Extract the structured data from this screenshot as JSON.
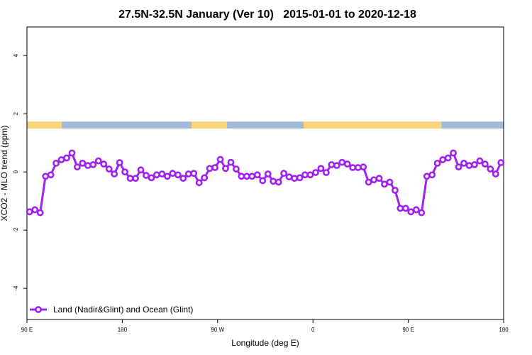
{
  "chart_data": {
    "type": "line",
    "title": "27.5N-32.5N January (Ver 10)   2015-01-01 to 2020-12-18",
    "x_label": "Longitude (deg E)",
    "y_label": "XCO2 - MLO trend (ppm)",
    "xlim": [
      90,
      540
    ],
    "ylim": [
      -5.07,
      4.98
    ],
    "xticks": [
      {
        "value": 90,
        "label": "90 E"
      },
      {
        "value": 180,
        "label": "180"
      },
      {
        "value": 270,
        "label": "90 W"
      },
      {
        "value": 360,
        "label": "0"
      },
      {
        "value": 450,
        "label": "90 E"
      },
      {
        "value": 540,
        "label": "180"
      }
    ],
    "yticks": [
      -4,
      -2,
      0,
      2,
      4
    ],
    "grid": false,
    "legend_position": "bottom-left",
    "surface_strip": {
      "ylim": [
        1.49,
        1.73
      ],
      "segments": [
        {
          "from": 90,
          "to": 122.8,
          "color": "#f7d57a"
        },
        {
          "from": 122.8,
          "to": 245.4,
          "color": "#a3b9d9"
        },
        {
          "from": 245.4,
          "to": 278.9,
          "color": "#f7d57a"
        },
        {
          "from": 278.9,
          "to": 351.2,
          "color": "#a3b9d9"
        },
        {
          "from": 351.2,
          "to": 481.2,
          "color": "#f7d57a"
        },
        {
          "from": 481.2,
          "to": 540,
          "color": "#a3b9d9"
        }
      ]
    },
    "x": [
      92.5,
      97.5,
      102.5,
      107.5,
      112.5,
      117.5,
      122.5,
      127.5,
      132.5,
      137.5,
      142.5,
      147.5,
      152.5,
      157.5,
      162.5,
      167.5,
      172.5,
      177.5,
      182.5,
      187.5,
      192.5,
      197.5,
      202.5,
      207.5,
      212.5,
      217.5,
      222.5,
      227.5,
      232.5,
      237.5,
      242.5,
      247.5,
      252.5,
      257.5,
      262.5,
      267.5,
      272.5,
      277.5,
      282.5,
      287.5,
      292.5,
      297.5,
      302.5,
      307.5,
      312.5,
      317.5,
      322.5,
      327.5,
      332.5,
      337.5,
      342.5,
      347.5,
      352.5,
      357.5,
      362.5,
      367.5,
      372.5,
      377.5,
      382.5,
      387.5,
      392.5,
      397.5,
      402.5,
      407.5,
      412.5,
      417.5,
      422.5,
      427.5,
      432.5,
      437.5,
      442.5,
      447.5,
      452.5,
      457.5,
      462.5,
      467.5,
      472.5,
      477.5,
      482.5,
      487.5,
      492.5,
      497.5,
      502.5,
      507.5,
      512.5,
      517.5,
      522.5,
      527.5,
      532.5,
      537.5
    ],
    "series": [
      {
        "name": "Land (Nadir&Glint) and Ocean (Glint)",
        "color": "#a020f0",
        "values": [
          -1.37,
          -1.3,
          -1.4,
          -0.15,
          -0.1,
          0.3,
          0.42,
          0.48,
          0.65,
          0.17,
          0.3,
          0.22,
          0.25,
          0.38,
          0.27,
          0.1,
          -0.07,
          0.32,
          0,
          -0.22,
          -0.22,
          0.07,
          -0.12,
          -0.2,
          -0.1,
          -0.07,
          -0.15,
          -0.05,
          -0.1,
          -0.22,
          -0.07,
          -0.05,
          -0.37,
          -0.2,
          0.12,
          0.15,
          0.43,
          0.12,
          0.33,
          0.1,
          -0.15,
          -0.15,
          -0.15,
          -0.1,
          -0.3,
          -0.07,
          -0.32,
          -0.35,
          -0.05,
          -0.17,
          -0.22,
          -0.2,
          -0.1,
          -0.1,
          -0.02,
          0.12,
          -0.02,
          0.25,
          0.22,
          0.33,
          0.27,
          0.15,
          0.15,
          0.17,
          -0.35,
          -0.27,
          -0.22,
          -0.42,
          -0.35,
          -0.63,
          -1.25,
          -1.25,
          -1.37,
          -1.3,
          -1.4,
          -0.15,
          -0.1,
          0.3,
          0.42,
          0.48,
          0.65,
          0.17,
          0.3,
          0.22,
          0.25,
          0.38,
          0.27,
          0.1,
          -0.07,
          0.32
        ]
      }
    ]
  }
}
